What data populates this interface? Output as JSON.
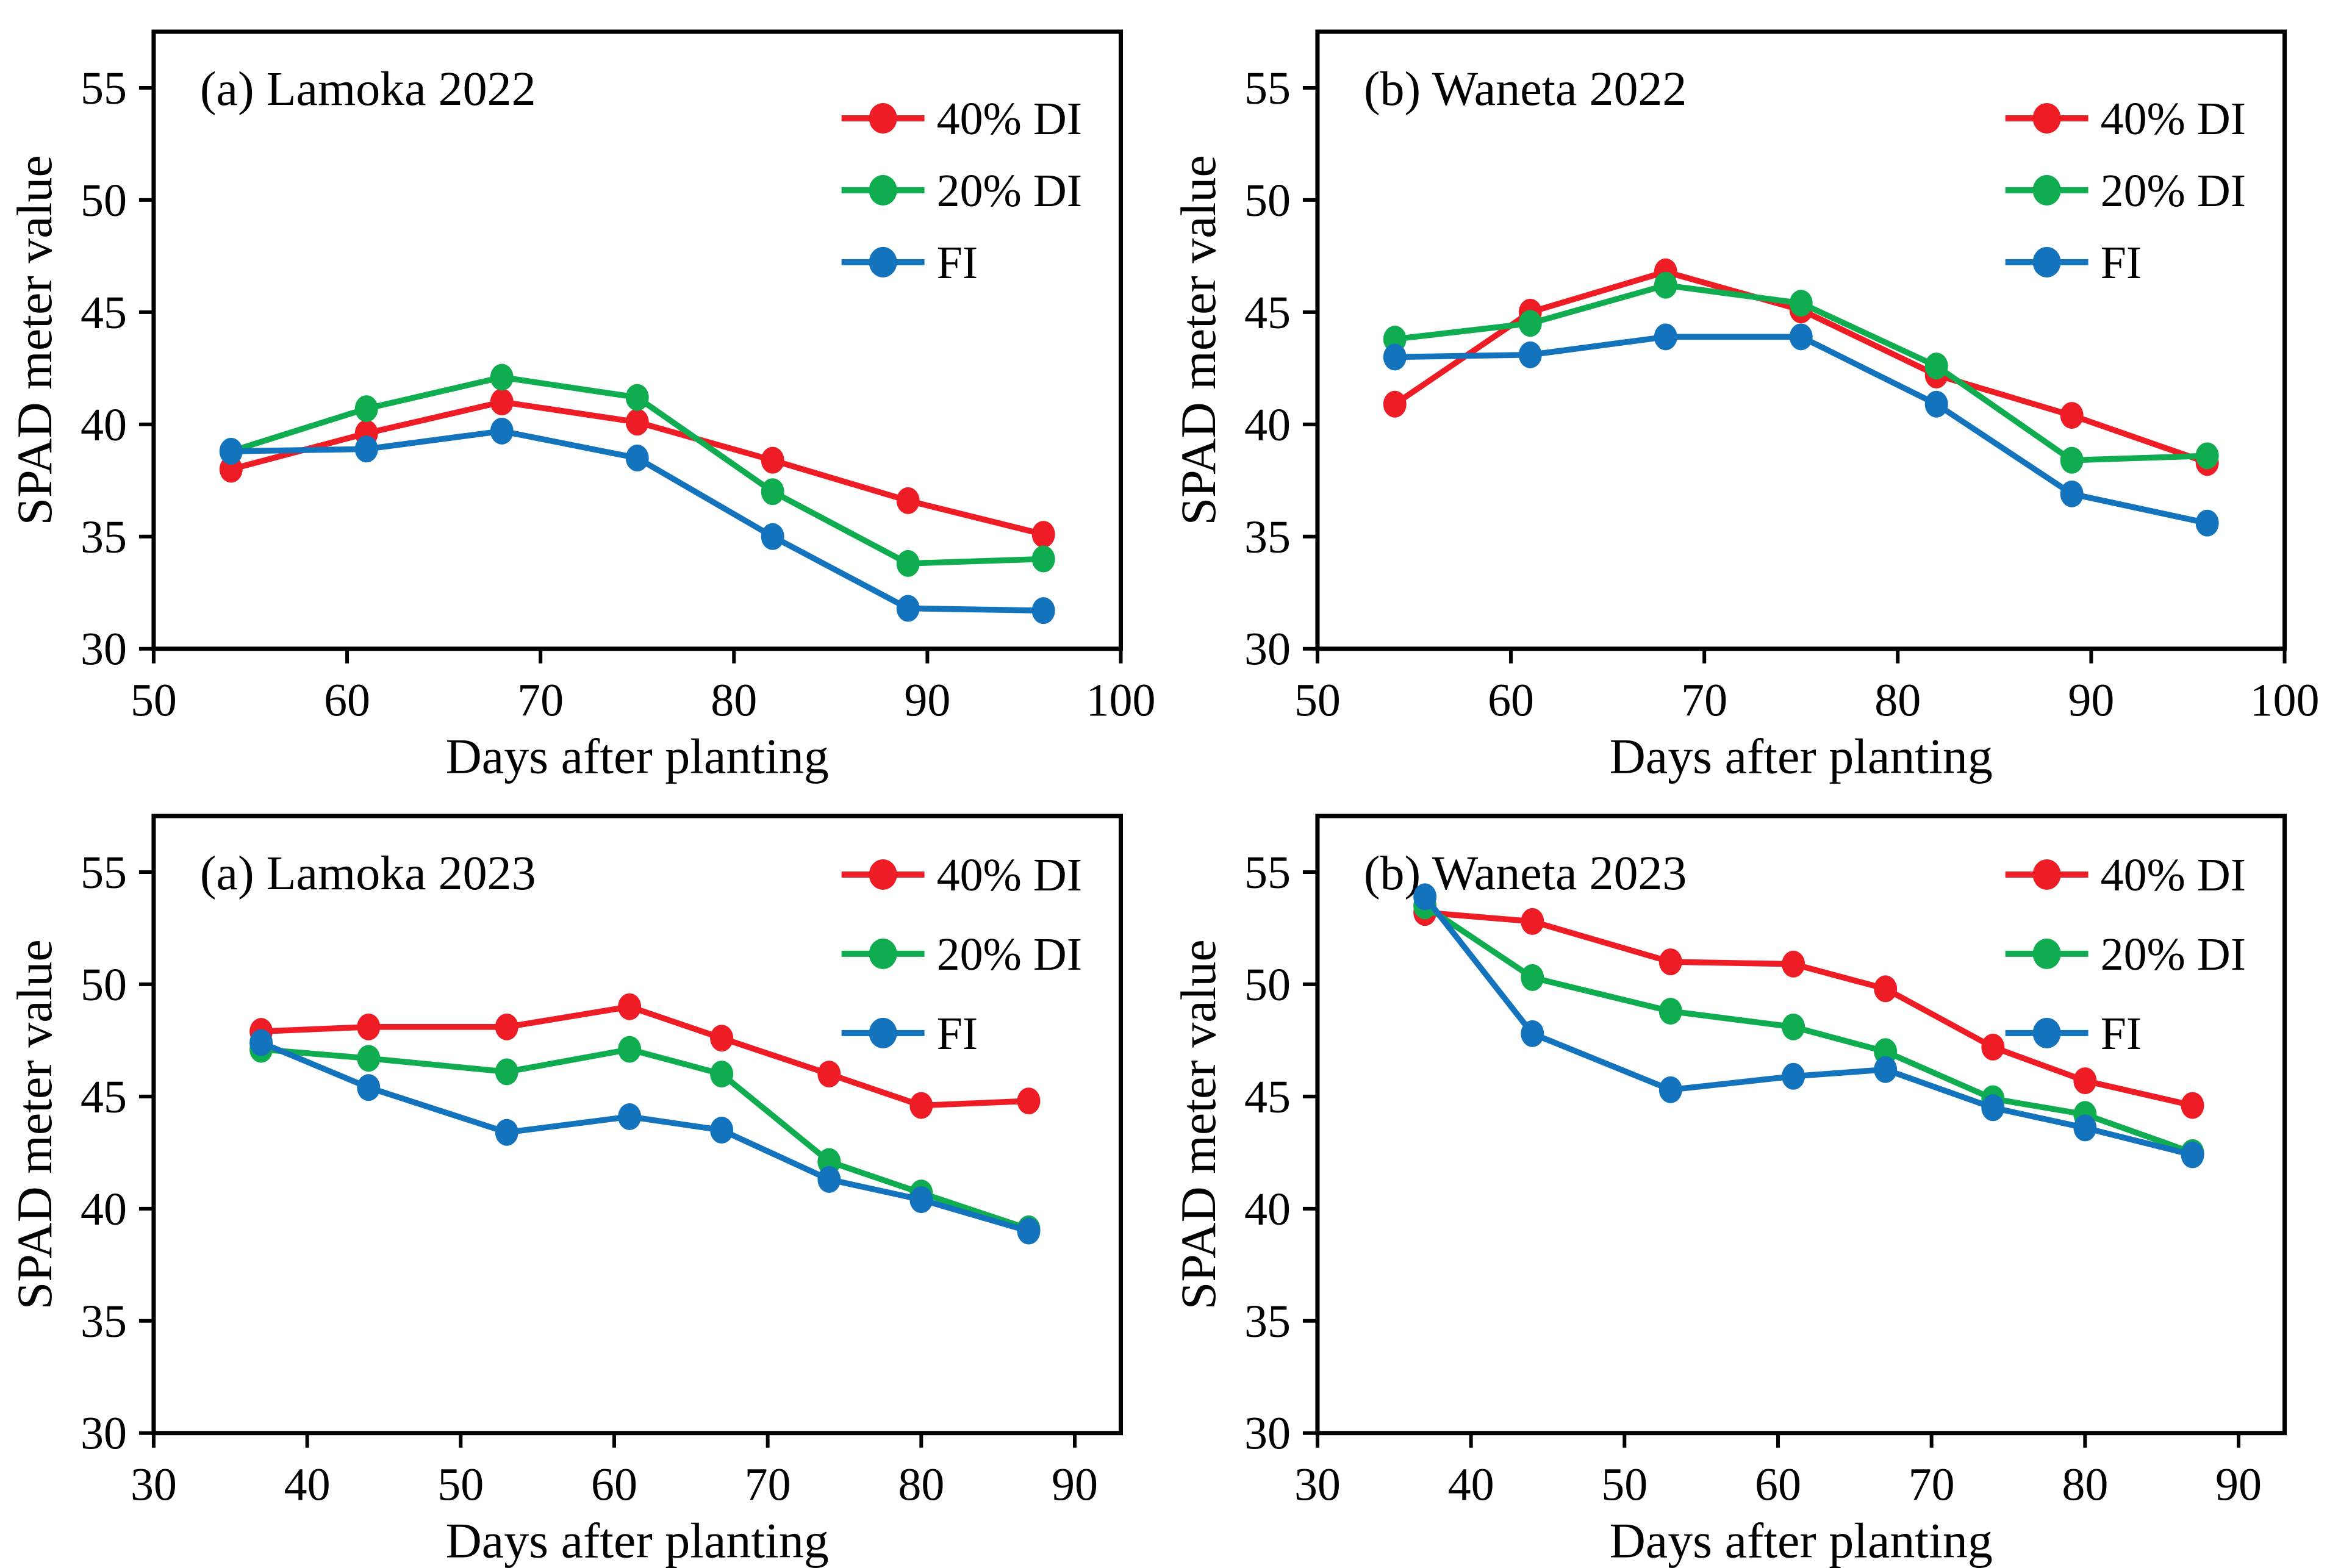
{
  "page": {
    "background": "#ffffff",
    "text_color": "#000000",
    "figure_type": "2x2 grid of SPAD line charts"
  },
  "chart_data": [
    {
      "type": "line",
      "title": "(a) Lamoka 2022",
      "xlabel": "Days after planting",
      "ylabel": "SPAD meter value",
      "xlim": [
        50,
        100
      ],
      "xticks": [
        50,
        60,
        70,
        80,
        90,
        100
      ],
      "ylim": [
        30,
        57.5
      ],
      "yticks": [
        30,
        35,
        40,
        45,
        50,
        55
      ],
      "grid": false,
      "legend_position": "upper-right-inside",
      "x": [
        54,
        61,
        68,
        75,
        82,
        89,
        96
      ],
      "series": [
        {
          "name": "40% DI",
          "color": "#ee1c25",
          "values": [
            38.0,
            39.6,
            41.0,
            40.1,
            38.4,
            36.6,
            35.1
          ]
        },
        {
          "name": "20% DI",
          "color": "#0fac50",
          "values": [
            38.8,
            40.7,
            42.1,
            41.2,
            37.0,
            33.8,
            34.0
          ]
        },
        {
          "name": "FI",
          "color": "#1473bd",
          "values": [
            38.8,
            38.9,
            39.7,
            38.5,
            35.0,
            31.8,
            31.7
          ]
        }
      ]
    },
    {
      "type": "line",
      "title": "(b) Waneta 2022",
      "xlabel": "Days after planting",
      "ylabel": "SPAD meter value",
      "xlim": [
        50,
        100
      ],
      "xticks": [
        50,
        60,
        70,
        80,
        90,
        100
      ],
      "ylim": [
        30,
        57.5
      ],
      "yticks": [
        30,
        35,
        40,
        45,
        50,
        55
      ],
      "grid": false,
      "legend_position": "upper-right-inside",
      "x": [
        54,
        61,
        68,
        75,
        82,
        89,
        96
      ],
      "series": [
        {
          "name": "40% DI",
          "color": "#ee1c25",
          "values": [
            40.9,
            45.0,
            46.8,
            45.1,
            42.2,
            40.4,
            38.3
          ]
        },
        {
          "name": "20% DI",
          "color": "#0fac50",
          "values": [
            43.8,
            44.5,
            46.2,
            45.4,
            42.6,
            38.4,
            38.6
          ]
        },
        {
          "name": "FI",
          "color": "#1473bd",
          "values": [
            43.0,
            43.1,
            43.9,
            43.9,
            40.9,
            36.9,
            35.6
          ]
        }
      ]
    },
    {
      "type": "line",
      "title": "(a) Lamoka 2023",
      "xlabel": "Days after planting",
      "ylabel": "SPAD meter value",
      "xlim": [
        30,
        93
      ],
      "xticks": [
        30,
        40,
        50,
        60,
        70,
        80,
        90
      ],
      "ylim": [
        30,
        57.5
      ],
      "yticks": [
        30,
        35,
        40,
        45,
        50,
        55
      ],
      "grid": false,
      "legend_position": "upper-right-inside",
      "x": [
        37,
        44,
        53,
        61,
        67,
        74,
        80,
        87
      ],
      "series": [
        {
          "name": "40% DI",
          "color": "#ee1c25",
          "values": [
            47.9,
            48.1,
            48.1,
            49.0,
            47.6,
            46.0,
            44.6,
            44.8
          ]
        },
        {
          "name": "20% DI",
          "color": "#0fac50",
          "values": [
            47.1,
            46.7,
            46.1,
            47.1,
            46.0,
            42.1,
            40.7,
            39.1
          ]
        },
        {
          "name": "FI",
          "color": "#1473bd",
          "values": [
            47.4,
            45.4,
            43.4,
            44.1,
            43.5,
            41.3,
            40.4,
            39.0
          ]
        }
      ]
    },
    {
      "type": "line",
      "title": "(b) Waneta 2023",
      "xlabel": "Days after planting",
      "ylabel": "SPAD meter value",
      "xlim": [
        30,
        93
      ],
      "xticks": [
        30,
        40,
        50,
        60,
        70,
        80,
        90
      ],
      "ylim": [
        30,
        57.5
      ],
      "yticks": [
        30,
        35,
        40,
        45,
        50,
        55
      ],
      "grid": false,
      "legend_position": "upper-right-inside",
      "x": [
        37,
        44,
        53,
        61,
        67,
        74,
        80,
        87
      ],
      "series": [
        {
          "name": "40% DI",
          "color": "#ee1c25",
          "values": [
            53.2,
            52.8,
            51.0,
            50.9,
            49.8,
            47.2,
            45.7,
            44.6
          ]
        },
        {
          "name": "20% DI",
          "color": "#0fac50",
          "values": [
            53.5,
            50.3,
            48.8,
            48.1,
            47.0,
            44.9,
            44.2,
            42.5
          ]
        },
        {
          "name": "FI",
          "color": "#1473bd",
          "values": [
            53.9,
            47.8,
            45.3,
            45.9,
            46.2,
            44.5,
            43.6,
            42.4
          ]
        }
      ]
    }
  ]
}
